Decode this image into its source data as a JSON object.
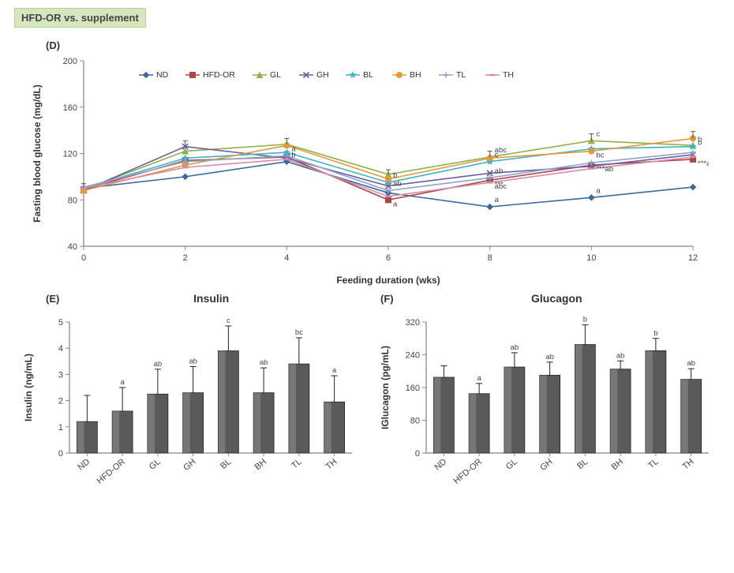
{
  "header": {
    "title": "HFD-OR vs. supplement"
  },
  "panels": {
    "D": {
      "label": "(D)",
      "type": "line",
      "xlabel": "Feeding duration (wks)",
      "ylabel": "Fasting blood glucose (mg/dL)",
      "xlim": [
        0,
        12
      ],
      "ylim": [
        40,
        200
      ],
      "xtick_step": 2,
      "ytick_step": 40,
      "background_color": "#ffffff",
      "grid": false,
      "series": [
        {
          "name": "ND",
          "color": "#3b6aa0",
          "marker": "diamond",
          "values": [
            90,
            100,
            113,
            86,
            74,
            82,
            91
          ]
        },
        {
          "name": "HFD-OR",
          "color": "#a84848",
          "marker": "square",
          "values": [
            89,
            114,
            117,
            80,
            97,
            110,
            115
          ]
        },
        {
          "name": "GL",
          "color": "#8fb04e",
          "marker": "triangle-up",
          "values": [
            89,
            122,
            128,
            102,
            117,
            131,
            127
          ]
        },
        {
          "name": "GH",
          "color": "#6a5fa0",
          "marker": "cross",
          "values": [
            88,
            126,
            116,
            92,
            103,
            109,
            119
          ]
        },
        {
          "name": "BL",
          "color": "#3fb1c9",
          "marker": "star",
          "values": [
            90,
            116,
            121,
            95,
            113,
            124,
            126
          ]
        },
        {
          "name": "BH",
          "color": "#e39a3b",
          "marker": "circle",
          "values": [
            88,
            110,
            127,
            98,
            116,
            122,
            133
          ]
        },
        {
          "name": "TL",
          "color": "#8ea5c8",
          "marker": "plus",
          "values": [
            91,
            113,
            118,
            88,
            99,
            112,
            121
          ]
        },
        {
          "name": "TH",
          "color": "#d88aa8",
          "marker": "dash",
          "values": [
            90,
            108,
            115,
            83,
            95,
            107,
            117
          ]
        }
      ],
      "errors": [
        3,
        5,
        5,
        4,
        5,
        6,
        6
      ],
      "sig_labels": {
        "4": [
          "b",
          "",
          "",
          "",
          "",
          "",
          "a",
          ""
        ],
        "6": [
          "",
          "a",
          "",
          "",
          "b",
          "",
          "ab",
          ""
        ],
        "8": [
          "a",
          "***",
          "abc",
          "",
          "c",
          "",
          "ab",
          "abc"
        ],
        "10": [
          "a",
          "***ab",
          "c",
          "",
          "",
          "bc",
          "",
          ""
        ],
        "12": [
          "",
          "***a",
          "",
          "",
          "b",
          "b",
          "",
          ""
        ]
      }
    },
    "E": {
      "label": "(E)",
      "title": "Insulin",
      "type": "bar",
      "ylabel": "Insulin (ng/mL)",
      "ylim": [
        0,
        5
      ],
      "ytick_step": 1,
      "categories": [
        "ND",
        "HFD-OR",
        "GL",
        "GH",
        "BL",
        "BH",
        "TL",
        "TH"
      ],
      "values": [
        1.2,
        1.6,
        2.25,
        2.3,
        3.9,
        2.3,
        3.4,
        1.95
      ],
      "errors": [
        1.0,
        0.9,
        0.95,
        1.0,
        0.95,
        0.95,
        1.0,
        1.0
      ],
      "sig": [
        "",
        "a",
        "ab",
        "ab",
        "c",
        "ab",
        "bc",
        "a"
      ],
      "bar_color": "#5a5a5a",
      "bar_width": 0.58
    },
    "F": {
      "label": "(F)",
      "title": "Glucagon",
      "type": "bar",
      "ylabel": "IGlucagon (pg/mL)",
      "ylim": [
        0,
        320
      ],
      "ytick_step": 80,
      "categories": [
        "ND",
        "HFD-OR",
        "GL",
        "GH",
        "BL",
        "BH",
        "TL",
        "TH"
      ],
      "values": [
        185,
        145,
        210,
        190,
        265,
        205,
        250,
        180
      ],
      "errors": [
        28,
        25,
        35,
        32,
        48,
        20,
        30,
        26
      ],
      "sig": [
        "",
        "a",
        "ab",
        "ab",
        "b",
        "ab",
        "b",
        "ab"
      ],
      "bar_color": "#5a5a5a",
      "bar_width": 0.58
    }
  },
  "fonts": {
    "tick_label": 11,
    "axis_title": 12,
    "legend": 10
  }
}
